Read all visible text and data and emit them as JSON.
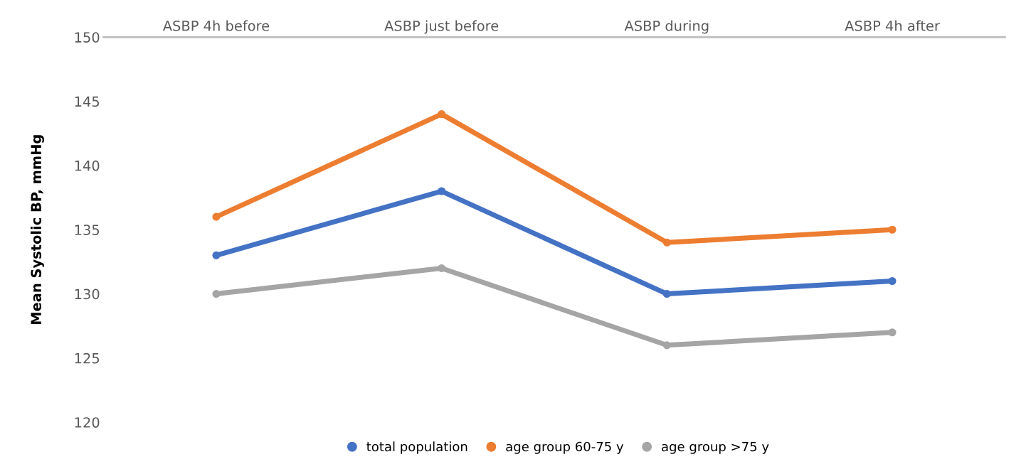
{
  "chart_data": {
    "type": "line",
    "categories": [
      "ASBP 4h before",
      "ASBP just before",
      "ASBP during",
      "ASBP 4h after"
    ],
    "ylabel": "Mean Systolic BP, mmHg",
    "ylim": [
      120,
      150
    ],
    "yticks": [
      120,
      125,
      130,
      135,
      140,
      145,
      150
    ],
    "grid": false,
    "legend": "bottom",
    "marker": "circle",
    "line_style": "solid",
    "series": [
      {
        "name": "total population",
        "color": "#4472c4",
        "values": [
          133,
          138,
          130,
          131
        ]
      },
      {
        "name": "age group 60-75 y",
        "color": "#ed7d31",
        "values": [
          136,
          144,
          134,
          135
        ]
      },
      {
        "name": "age group >75 y",
        "color": "#a5a5a5",
        "values": [
          130,
          132,
          126,
          127
        ]
      }
    ]
  }
}
